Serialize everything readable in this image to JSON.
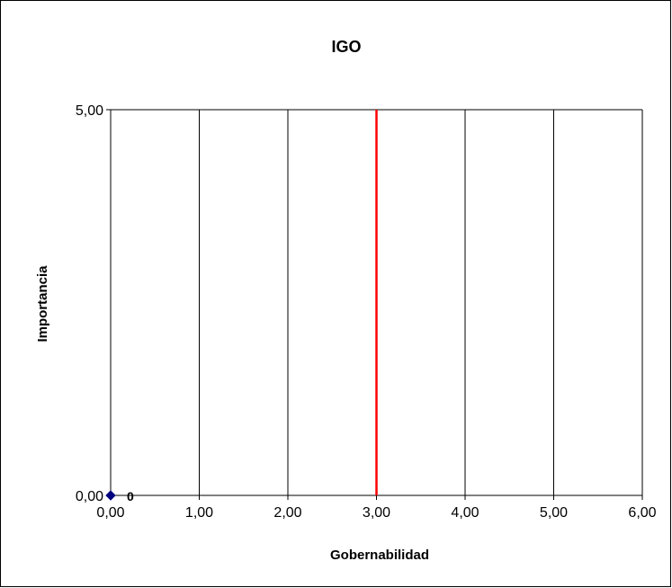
{
  "chart_data": {
    "type": "scatter",
    "title": "IGO",
    "xlabel": "Gobernabilidad",
    "ylabel": "Importancia",
    "xlim": [
      0,
      6
    ],
    "ylim": [
      0,
      5
    ],
    "x_ticks": [
      0,
      1,
      2,
      3,
      4,
      5,
      6
    ],
    "x_tick_labels": [
      "0,00",
      "1,00",
      "2,00",
      "3,00",
      "4,00",
      "5,00",
      "6,00"
    ],
    "y_ticks": [
      0,
      5
    ],
    "y_tick_labels": [
      "0,00",
      "5,00"
    ],
    "grid": {
      "vertical": true,
      "horizontal": false
    },
    "series": [
      {
        "points": [
          {
            "x": 0,
            "y": 0,
            "label": "0"
          }
        ],
        "marker": "diamond",
        "color": "#000080"
      }
    ],
    "reference_lines": [
      {
        "axis": "x",
        "value": 3,
        "color": "#ff0000"
      }
    ],
    "legend": "none"
  }
}
